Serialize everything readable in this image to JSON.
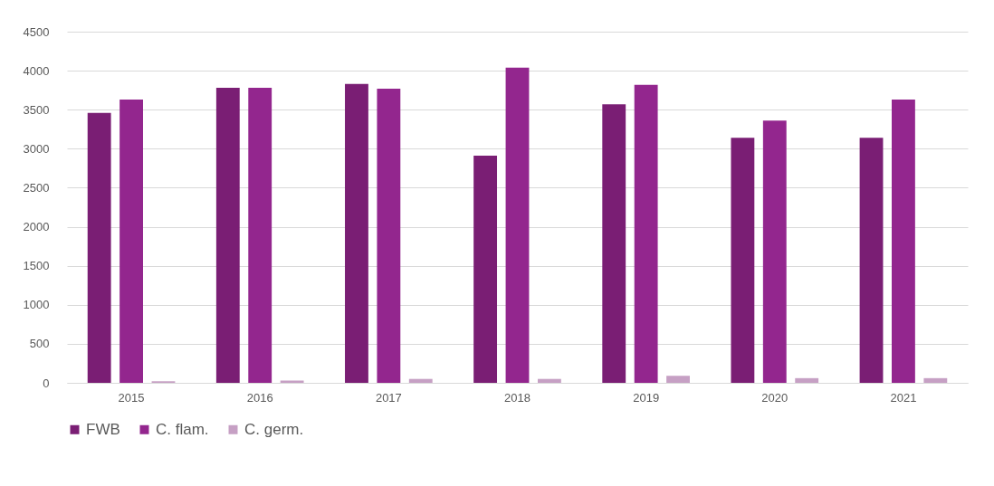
{
  "chart_data": {
    "type": "bar",
    "categories": [
      "2015",
      "2016",
      "2017",
      "2018",
      "2019",
      "2020",
      "2021"
    ],
    "series": [
      {
        "name": "FWB",
        "color": "#7a1e74",
        "values": [
          3460,
          3780,
          3830,
          2910,
          3570,
          3140,
          3140
        ]
      },
      {
        "name": "C. flam.",
        "color": "#93268e",
        "values": [
          3630,
          3780,
          3770,
          4040,
          3820,
          3360,
          3630
        ]
      },
      {
        "name": "C. germ.",
        "color": "#c6a0c4",
        "values": [
          20,
          30,
          50,
          50,
          90,
          60,
          60
        ]
      }
    ],
    "ylim": [
      0,
      4500
    ],
    "yticks": [
      0,
      500,
      1000,
      1500,
      2000,
      2500,
      3000,
      3500,
      4000,
      4500
    ],
    "grid": "y",
    "legend": "bottom"
  }
}
